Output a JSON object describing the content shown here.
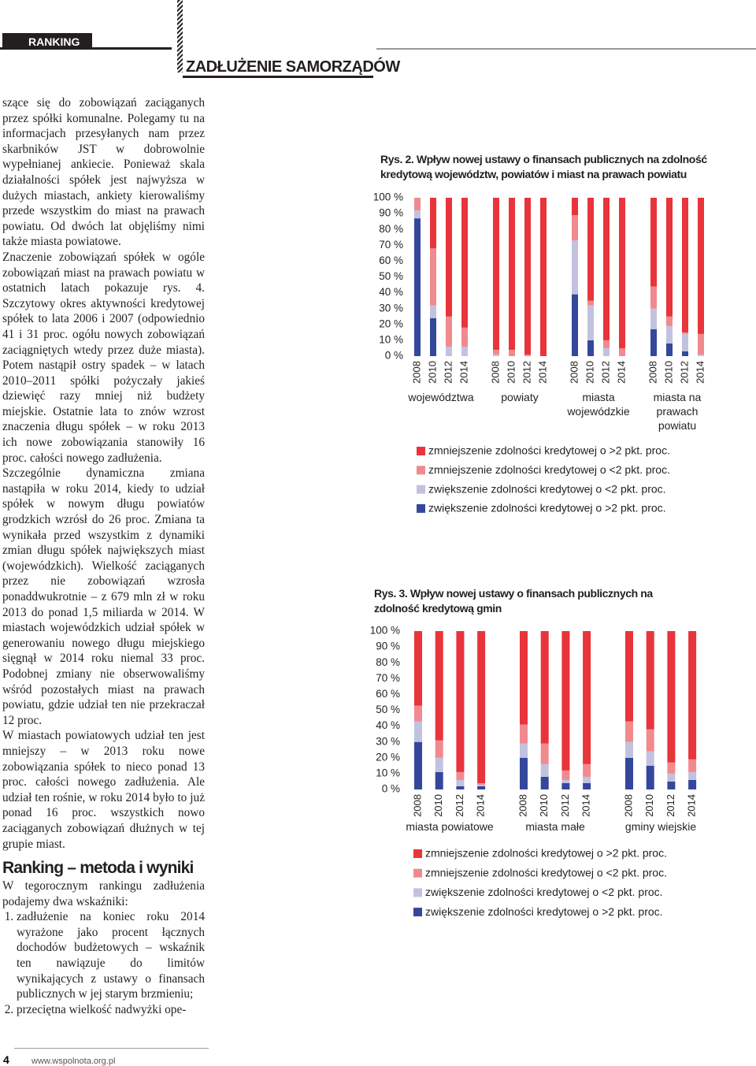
{
  "header": {
    "section": "RANKING",
    "title": "ZADŁUŻENIE SAMORZĄDÓW"
  },
  "body": {
    "paragraphs": [
      "szące się do zobowiązań zaciąganych przez spółki komunalne. Polegamy tu na informacjach przesyłanych nam przez skarbników JST w dobrowolnie wypełnianej ankiecie. Ponieważ skala działalności spółek jest najwyższa w dużych miastach, ankiety kierowaliśmy przede wszystkim do miast na prawach powiatu. Od dwóch lat objęliśmy nimi także miasta powiatowe.",
      "Znaczenie zobowiązań spółek w ogóle zobowiązań miast na prawach powiatu w ostatnich latach pokazuje rys. 4. Szczytowy okres aktywności kredytowej spółek to lata 2006 i 2007 (odpowiednio 41 i 31 proc. ogółu nowych zobowiązań zaciągniętych wtedy przez duże miasta). Potem nastąpił ostry spadek – w latach 2010–2011 spółki pożyczały jakieś dziewięć razy mniej niż budżety miejskie. Ostatnie lata to znów wzrost znaczenia długu spółek – w roku 2013 ich nowe zobowiązania stanowiły 16 proc. całości nowego zadłużenia.",
      "Szczególnie dynamiczna zmiana nastąpiła w roku 2014, kiedy to udział spółek w nowym długu powiatów grodzkich wzrósł do 26 proc. Zmiana ta wynikała przed wszystkim z dynamiki zmian długu spółek największych miast (wojewódzkich). Wielkość zaciąganych przez nie zobowiązań wzrosła ponaddwukrotnie – z 679 mln zł w roku 2013 do ponad 1,5 miliarda w 2014. W miastach wojewódzkich udział spółek w generowaniu nowego długu miejskiego sięgnął w 2014 roku niemal 33 proc. Podobnej zmiany nie obserwowaliśmy wśród pozostałych miast na prawach powiatu, gdzie udział ten nie przekraczał 12 proc.",
      "W miastach powiatowych udział ten jest mniejszy – w 2013 roku nowe zobowiązania spółek to nieco ponad 13 proc. całości nowego zadłużenia. Ale udział ten rośnie, w roku 2014 było to już ponad 16 proc. wszystkich nowo zaciąganych zobowiązań dłużnych w tej grupie miast."
    ],
    "heading": "Ranking – metoda i wyniki",
    "intro": "W tegorocznym rankingu zadłużenia podajemy dwa wskaźniki:",
    "list": [
      "zadłużenie na koniec roku 2014 wyrażone jako procent łącznych dochodów budżetowych – wskaźnik ten nawiązuje do limitów wynikających z ustawy o finansach publicznych w jej starym brzmieniu;",
      "przeciętna wielkość nadwyżki ope-"
    ]
  },
  "footer": {
    "page": "4",
    "url": "www.wspolnota.org.pl"
  },
  "chart_data": [
    {
      "type": "bar",
      "stacked": true,
      "title": "Rys. 2. Wpływ nowej ustawy o finansach publicznych na zdolność kredytową województw, powiatów i miast na prawach powiatu",
      "groups": [
        "województwa",
        "powiaty",
        "miasta wojewódzkie",
        "miasta na prawach powiatu"
      ],
      "categories": [
        "2008",
        "2010",
        "2012",
        "2014",
        "2008",
        "2010",
        "2012",
        "2014",
        "2008",
        "2010",
        "2012",
        "2014",
        "2008",
        "2010",
        "2012",
        "2014"
      ],
      "ylim": [
        0,
        100
      ],
      "yticks": [
        {
          "value": 0,
          "label": "0 %"
        },
        {
          "value": 10,
          "label": "10 %"
        },
        {
          "value": 20,
          "label": "20 %"
        },
        {
          "value": 30,
          "label": "30 %"
        },
        {
          "value": 40,
          "label": "40 %"
        },
        {
          "value": 50,
          "label": "50 %"
        },
        {
          "value": 60,
          "label": "60 %"
        },
        {
          "value": 70,
          "label": "70 %"
        },
        {
          "value": 80,
          "label": "80 %"
        },
        {
          "value": 90,
          "label": "90 %"
        },
        {
          "value": 100,
          "label": "100 %"
        }
      ],
      "series": [
        {
          "name": "zmniejszenie zdolności kredytowej o >2 pkt. proc.",
          "color": "#e8343a",
          "values": [
            0,
            32,
            75,
            82,
            96,
            96,
            99,
            100,
            11,
            65,
            90,
            95,
            56,
            75,
            85,
            86
          ]
        },
        {
          "name": "zmniejszenie zdolności kredytowej o <2 pkt. proc.",
          "color": "#f08a8e",
          "values": [
            8,
            36,
            19,
            12,
            3,
            4,
            1,
            0,
            16,
            3,
            5,
            5,
            14,
            6,
            1,
            13
          ]
        },
        {
          "name": "zwiększenie zdolności kredytowej o <2 pkt. proc.",
          "color": "#c2c2e0",
          "values": [
            5,
            8,
            6,
            6,
            1,
            0,
            0,
            0,
            34,
            22,
            5,
            0,
            13,
            11,
            11,
            1
          ]
        },
        {
          "name": "zwiększenie zdolności kredytowej o >2 pkt. proc.",
          "color": "#34479a",
          "values": [
            87,
            24,
            0,
            0,
            0,
            0,
            0,
            0,
            39,
            10,
            0,
            0,
            17,
            8,
            3,
            0
          ]
        }
      ]
    },
    {
      "type": "bar",
      "stacked": true,
      "title": "Rys. 3. Wpływ nowej ustawy o finansach publicznych na zdolność kredytową gmin",
      "groups": [
        "miasta powiatowe",
        "miasta małe",
        "gminy wiejskie"
      ],
      "categories": [
        "2008",
        "2010",
        "2012",
        "2014",
        "2008",
        "2010",
        "2012",
        "2014",
        "2008",
        "2010",
        "2012",
        "2014"
      ],
      "ylim": [
        0,
        100
      ],
      "yticks": [
        {
          "value": 0,
          "label": "0 %"
        },
        {
          "value": 10,
          "label": "10 %"
        },
        {
          "value": 20,
          "label": "20 %"
        },
        {
          "value": 30,
          "label": "30 %"
        },
        {
          "value": 40,
          "label": "40 %"
        },
        {
          "value": 50,
          "label": "50 %"
        },
        {
          "value": 60,
          "label": "60 %"
        },
        {
          "value": 70,
          "label": "70 %"
        },
        {
          "value": 80,
          "label": "80 %"
        },
        {
          "value": 90,
          "label": "90 %"
        },
        {
          "value": 100,
          "label": "100 %"
        }
      ],
      "series": [
        {
          "name": "zmniejszenie zdolności kredytowej o >2 pkt. proc.",
          "color": "#e8343a",
          "values": [
            47,
            69,
            89,
            96,
            59,
            71,
            88,
            84,
            57,
            62,
            83,
            81
          ]
        },
        {
          "name": "zmniejszenie zdolności kredytowej o <2 pkt. proc.",
          "color": "#f08a8e",
          "values": [
            10,
            11,
            5,
            1,
            12,
            13,
            6,
            8,
            13,
            14,
            7,
            8
          ]
        },
        {
          "name": "zwiększenie zdolności kredytowej o <2 pkt. proc.",
          "color": "#c2c2e0",
          "values": [
            13,
            9,
            4,
            1,
            9,
            8,
            2,
            4,
            10,
            9,
            5,
            5
          ]
        },
        {
          "name": "zwiększenie zdolności kredytowej o >2 pkt. proc.",
          "color": "#34479a",
          "values": [
            30,
            11,
            2,
            2,
            20,
            8,
            4,
            4,
            20,
            15,
            5,
            6
          ]
        }
      ]
    }
  ]
}
